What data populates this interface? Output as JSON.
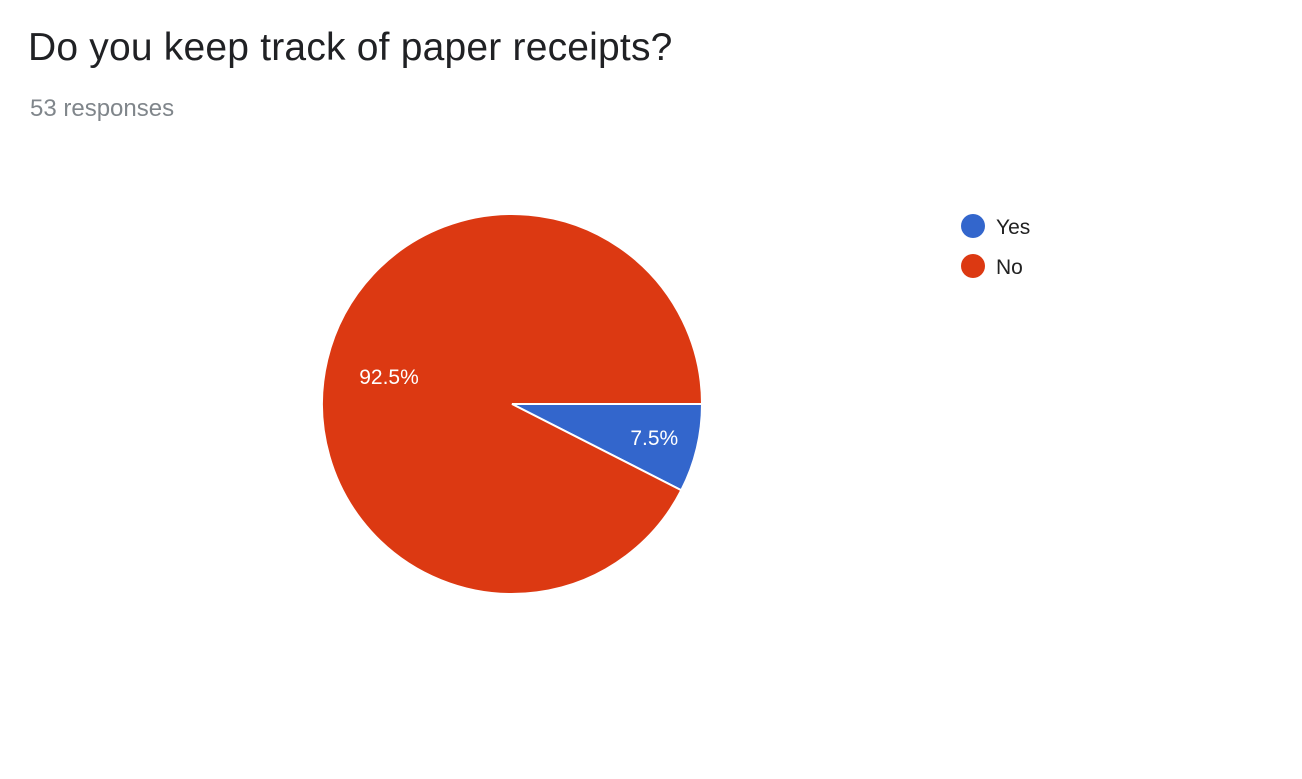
{
  "header": {
    "title": "Do you keep track of paper receipts?",
    "subtitle": "53 responses"
  },
  "chart_data": {
    "type": "pie",
    "title": "Do you keep track of paper receipts?",
    "subtitle": "53 responses",
    "legend_position": "right",
    "slices": [
      {
        "name": "Yes",
        "value": 7.5,
        "label": "7.5%",
        "color": "#3366cc"
      },
      {
        "name": "No",
        "value": 92.5,
        "label": "92.5%",
        "color": "#dc3912"
      }
    ]
  }
}
